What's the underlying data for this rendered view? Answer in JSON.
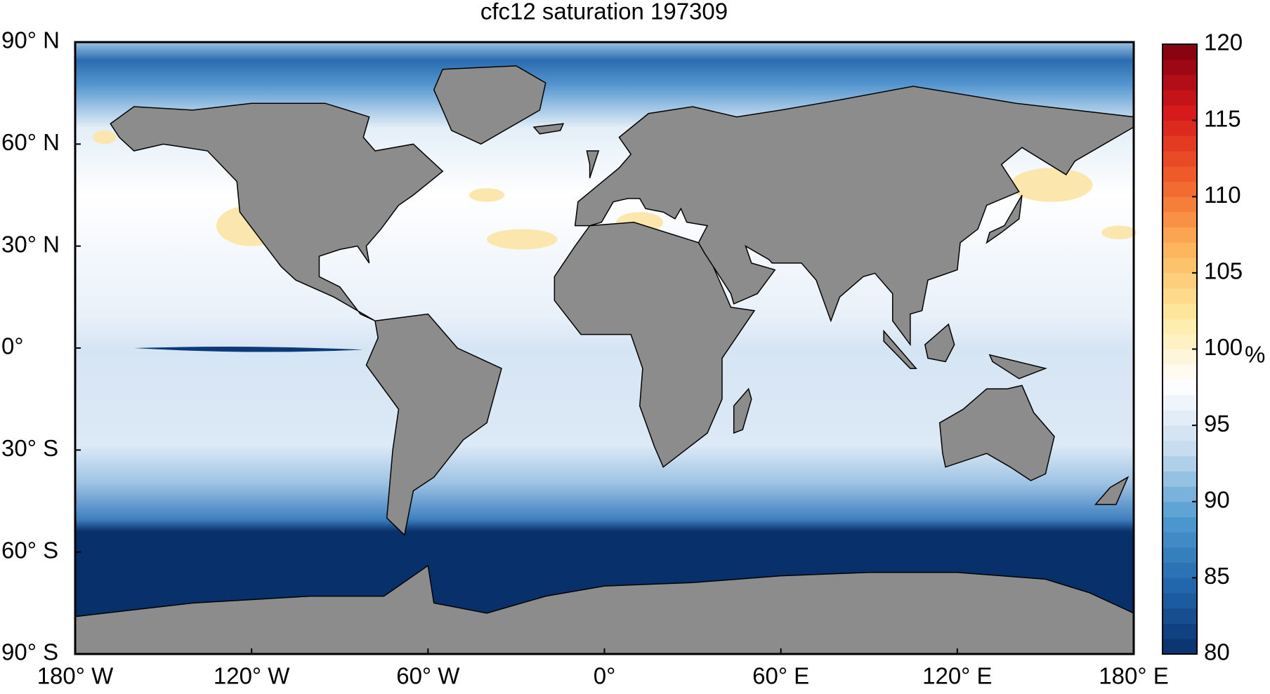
{
  "chart_data": {
    "type": "map",
    "title": "cfc12 saturation 197309",
    "xlim": [
      -180,
      180
    ],
    "xticks": [
      {
        "value": -180,
        "label": "180° W"
      },
      {
        "value": -120,
        "label": "120° W"
      },
      {
        "value": -60,
        "label": "60° W"
      },
      {
        "value": 0,
        "label": "0°"
      },
      {
        "value": 60,
        "label": "60° E"
      },
      {
        "value": 120,
        "label": "120° E"
      },
      {
        "value": 180,
        "label": "180° E"
      }
    ],
    "ylim": [
      -90,
      90
    ],
    "yticks": [
      {
        "value": 90,
        "label": "90° N"
      },
      {
        "value": 60,
        "label": "60° N"
      },
      {
        "value": 30,
        "label": "30° N"
      },
      {
        "value": 0,
        "label": "0°"
      },
      {
        "value": -30,
        "label": "30° S"
      },
      {
        "value": -60,
        "label": "60° S"
      },
      {
        "value": -90,
        "label": "90° S"
      }
    ],
    "colorbar": {
      "lim": [
        80,
        120
      ],
      "ticks": [
        80,
        85,
        90,
        95,
        100,
        105,
        110,
        115,
        120
      ],
      "label": "%",
      "colors": [
        "#08306b",
        "#2166ac",
        "#4f9bd0",
        "#c6dbef",
        "#ffffff",
        "#fde9a0",
        "#fdb45a",
        "#f0602a",
        "#d7191c",
        "#7f0010"
      ]
    },
    "land_color": "#8c8c8c"
  }
}
